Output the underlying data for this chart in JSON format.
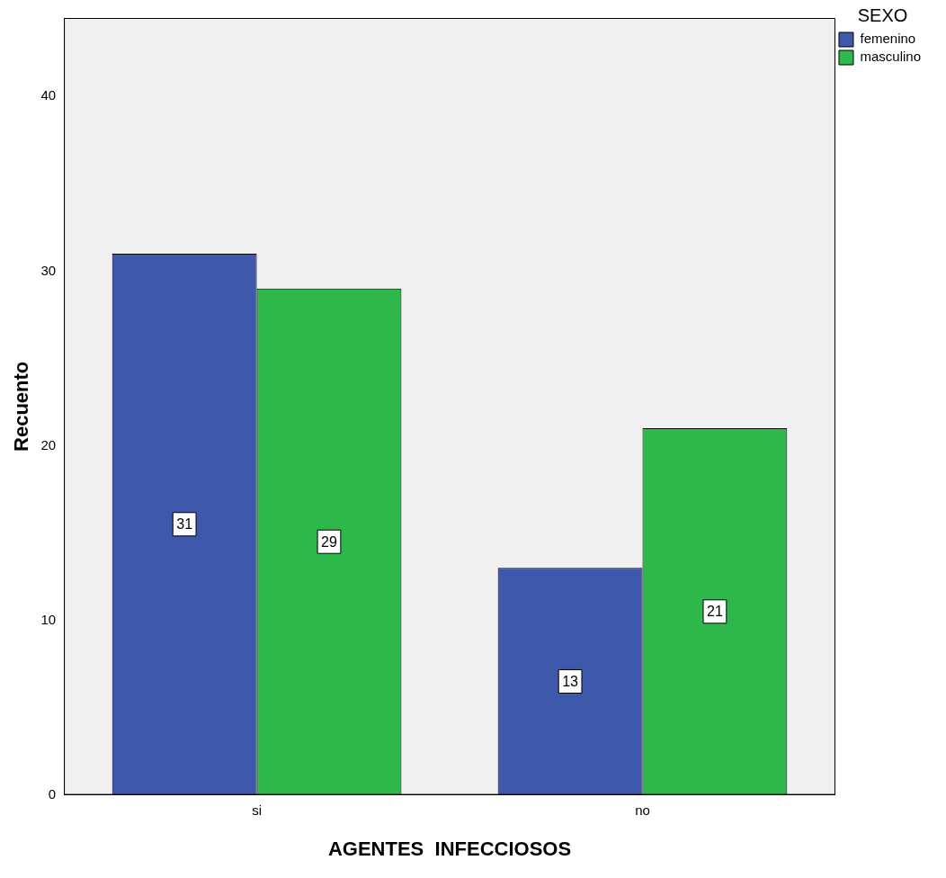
{
  "chart_data": {
    "type": "bar",
    "xlabel": "AGENTES  INFECCIOSOS",
    "ylabel": "Recuento",
    "legend_title": "SEXO",
    "categories": [
      "si",
      "no"
    ],
    "series": [
      {
        "name": "femenino",
        "color": "#3e58ac",
        "values": [
          31,
          13
        ]
      },
      {
        "name": "masculino",
        "color": "#2eb84b",
        "values": [
          29,
          21
        ]
      }
    ],
    "ylim": [
      0,
      44.5
    ],
    "yticks": [
      0,
      10,
      20,
      30,
      40
    ],
    "grid": false,
    "legend": "top right",
    "data_labels": true
  }
}
